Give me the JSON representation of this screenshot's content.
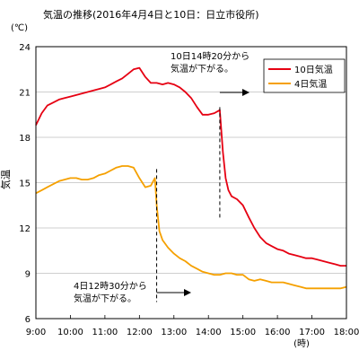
{
  "chart_data": {
    "type": "line",
    "title": "気温の推移(2016年4月4日と10日：日立市役所)",
    "unit_label": "(℃)",
    "ylabel": "気温",
    "xlabel": "(時)",
    "ylim": [
      6,
      24
    ],
    "yticks": [
      6,
      9,
      12,
      15,
      18,
      21,
      24
    ],
    "xlim": [
      9,
      18
    ],
    "xticks": [
      {
        "x": 9,
        "label": "9:00"
      },
      {
        "x": 10,
        "label": "10:00"
      },
      {
        "x": 11,
        "label": "11:00"
      },
      {
        "x": 12,
        "label": "12:00"
      },
      {
        "x": 13,
        "label": "13:00"
      },
      {
        "x": 14,
        "label": "14:00"
      },
      {
        "x": 15,
        "label": "15:00"
      },
      {
        "x": 16,
        "label": "16:00"
      },
      {
        "x": 17,
        "label": "17:00"
      },
      {
        "x": 18,
        "label": "18:00"
      }
    ],
    "legend_position": "top-right",
    "series": [
      {
        "name": "10日気温",
        "color": "#e60012",
        "x": [
          9.0,
          9.17,
          9.33,
          9.5,
          9.67,
          9.83,
          10.0,
          10.17,
          10.33,
          10.5,
          10.67,
          10.83,
          11.0,
          11.17,
          11.33,
          11.5,
          11.67,
          11.83,
          12.0,
          12.17,
          12.33,
          12.5,
          12.67,
          12.83,
          13.0,
          13.17,
          13.33,
          13.5,
          13.67,
          13.83,
          14.0,
          14.17,
          14.33,
          14.42,
          14.5,
          14.58,
          14.67,
          14.83,
          15.0,
          15.17,
          15.33,
          15.5,
          15.67,
          15.83,
          16.0,
          16.17,
          16.33,
          16.5,
          16.67,
          16.83,
          17.0,
          17.17,
          17.33,
          17.5,
          17.67,
          17.83,
          18.0
        ],
        "values": [
          18.8,
          19.6,
          20.1,
          20.3,
          20.5,
          20.6,
          20.7,
          20.8,
          20.9,
          21.0,
          21.1,
          21.2,
          21.3,
          21.5,
          21.7,
          21.9,
          22.2,
          22.5,
          22.6,
          22.0,
          21.6,
          21.6,
          21.5,
          21.6,
          21.5,
          21.3,
          21.0,
          20.6,
          20.0,
          19.5,
          19.5,
          19.6,
          19.8,
          17.0,
          15.3,
          14.5,
          14.1,
          13.9,
          13.5,
          12.7,
          12.0,
          11.4,
          11.0,
          10.8,
          10.6,
          10.5,
          10.3,
          10.2,
          10.1,
          10.0,
          10.0,
          9.9,
          9.8,
          9.7,
          9.6,
          9.5,
          9.5
        ]
      },
      {
        "name": "4日気温",
        "color": "#f5a000",
        "x": [
          9.0,
          9.17,
          9.33,
          9.5,
          9.67,
          9.83,
          10.0,
          10.17,
          10.33,
          10.5,
          10.67,
          10.83,
          11.0,
          11.17,
          11.33,
          11.5,
          11.67,
          11.83,
          12.0,
          12.17,
          12.33,
          12.45,
          12.5,
          12.58,
          12.67,
          12.83,
          13.0,
          13.17,
          13.33,
          13.5,
          13.67,
          13.83,
          14.0,
          14.17,
          14.33,
          14.5,
          14.67,
          14.83,
          15.0,
          15.17,
          15.33,
          15.5,
          15.67,
          15.83,
          16.0,
          16.17,
          16.33,
          16.5,
          16.67,
          16.83,
          17.0,
          17.17,
          17.33,
          17.5,
          17.67,
          17.83,
          18.0
        ],
        "values": [
          14.3,
          14.5,
          14.7,
          14.9,
          15.1,
          15.2,
          15.3,
          15.3,
          15.2,
          15.2,
          15.3,
          15.5,
          15.6,
          15.8,
          16.0,
          16.1,
          16.1,
          16.0,
          15.3,
          14.7,
          14.8,
          15.3,
          13.5,
          11.8,
          11.2,
          10.7,
          10.3,
          10.0,
          9.8,
          9.5,
          9.3,
          9.1,
          9.0,
          8.9,
          8.9,
          9.0,
          9.0,
          8.9,
          8.9,
          8.6,
          8.5,
          8.6,
          8.5,
          8.4,
          8.4,
          8.4,
          8.3,
          8.2,
          8.1,
          8.0,
          8.0,
          8.0,
          8.0,
          8.0,
          8.0,
          8.0,
          8.1
        ]
      }
    ],
    "annotations": [
      {
        "lines": [
          "10日14時20分から",
          "気温が下がる。"
        ],
        "at_x": 14.33,
        "from_y": 20.0,
        "to_y": 12.6
      },
      {
        "lines": [
          "4日12時30分から",
          "気温が下がる。"
        ],
        "at_x": 12.5,
        "from_y": 15.9,
        "to_y": 7.1
      }
    ]
  }
}
